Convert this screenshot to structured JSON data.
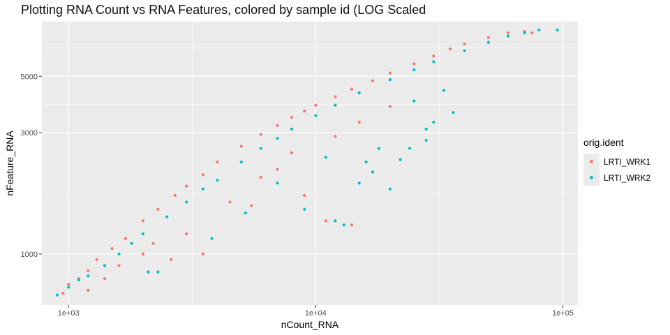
{
  "chart_data": {
    "type": "scatter",
    "title": "Plotting RNA Count vs RNA Features, colored by sample id (LOG Scaled",
    "xlabel": "nCount_RNA",
    "ylabel": "nFeature_RNA",
    "x_scale": "log10",
    "y_scale": "log10",
    "xlim": [
      780,
      115000
    ],
    "ylim": [
      630,
      8200
    ],
    "x_ticks": [
      {
        "value": 1000,
        "label": "1e+03"
      },
      {
        "value": 10000,
        "label": "1e+04"
      },
      {
        "value": 100000,
        "label": "1e+05"
      }
    ],
    "y_ticks": [
      {
        "value": 1000,
        "label": "1000"
      },
      {
        "value": 3000,
        "label": "3000"
      },
      {
        "value": 5000,
        "label": "5000"
      }
    ],
    "grid": true,
    "legend": {
      "title": "orig.ident",
      "position": "right",
      "entries": [
        {
          "label": "LRTI_WRK1",
          "color": "#F8766D"
        },
        {
          "label": "LRTI_WRK2",
          "color": "#00BFC4"
        }
      ]
    },
    "series": [
      {
        "name": "LRTI_WRK1",
        "color": "#F8766D",
        "points": [
          [
            950,
            700
          ],
          [
            1000,
            760
          ],
          [
            1100,
            800
          ],
          [
            1200,
            860
          ],
          [
            1300,
            950
          ],
          [
            1500,
            1050
          ],
          [
            1700,
            1150
          ],
          [
            2000,
            1350
          ],
          [
            2300,
            1500
          ],
          [
            2700,
            1700
          ],
          [
            3000,
            1850
          ],
          [
            3500,
            2050
          ],
          [
            4000,
            2300
          ],
          [
            5000,
            2650
          ],
          [
            6000,
            2950
          ],
          [
            7000,
            3200
          ],
          [
            8000,
            3450
          ],
          [
            9000,
            3650
          ],
          [
            10000,
            3850
          ],
          [
            12000,
            4150
          ],
          [
            14000,
            4450
          ],
          [
            17000,
            4800
          ],
          [
            20000,
            5150
          ],
          [
            25000,
            5600
          ],
          [
            30000,
            6000
          ],
          [
            35000,
            6400
          ],
          [
            40000,
            6700
          ],
          [
            50000,
            7100
          ],
          [
            60000,
            7400
          ],
          [
            70000,
            7500
          ],
          [
            75000,
            7400
          ],
          [
            1600,
            900
          ],
          [
            2200,
            1100
          ],
          [
            3000,
            1200
          ],
          [
            3500,
            1000
          ],
          [
            4500,
            1600
          ],
          [
            6000,
            2000
          ],
          [
            8000,
            2500
          ],
          [
            12000,
            2900
          ],
          [
            15000,
            3300
          ],
          [
            20000,
            3800
          ],
          [
            2600,
            950
          ],
          [
            9000,
            1700
          ],
          [
            11000,
            1350
          ],
          [
            14000,
            1300
          ],
          [
            5500,
            1550
          ],
          [
            7000,
            2150
          ],
          [
            2000,
            1000
          ],
          [
            1200,
            720
          ],
          [
            1400,
            800
          ]
        ]
      },
      {
        "name": "LRTI_WRK2",
        "color": "#00BFC4",
        "points": [
          [
            900,
            690
          ],
          [
            1000,
            740
          ],
          [
            1100,
            790
          ],
          [
            1200,
            820
          ],
          [
            1400,
            900
          ],
          [
            1600,
            1000
          ],
          [
            1800,
            1100
          ],
          [
            2000,
            1200
          ],
          [
            2500,
            1400
          ],
          [
            3000,
            1600
          ],
          [
            3500,
            1800
          ],
          [
            4000,
            1950
          ],
          [
            5000,
            2300
          ],
          [
            6000,
            2600
          ],
          [
            7000,
            2850
          ],
          [
            8000,
            3100
          ],
          [
            10000,
            3500
          ],
          [
            12000,
            3850
          ],
          [
            15000,
            4300
          ],
          [
            20000,
            4850
          ],
          [
            25000,
            5300
          ],
          [
            30000,
            5700
          ],
          [
            40000,
            6300
          ],
          [
            50000,
            6800
          ],
          [
            60000,
            7200
          ],
          [
            70000,
            7400
          ],
          [
            80000,
            7600
          ],
          [
            95000,
            7600
          ],
          [
            12000,
            1350
          ],
          [
            13000,
            1300
          ],
          [
            17000,
            2100
          ],
          [
            20000,
            1800
          ],
          [
            22000,
            2350
          ],
          [
            24000,
            2600
          ],
          [
            28000,
            3100
          ],
          [
            30000,
            3300
          ],
          [
            36000,
            3600
          ],
          [
            33000,
            4400
          ],
          [
            15000,
            1900
          ],
          [
            18000,
            2600
          ],
          [
            16000,
            2300
          ],
          [
            9000,
            1500
          ],
          [
            11000,
            2400
          ],
          [
            2100,
            850
          ],
          [
            2300,
            850
          ],
          [
            5200,
            1450
          ],
          [
            7000,
            1900
          ],
          [
            25000,
            4000
          ],
          [
            28000,
            2800
          ],
          [
            3800,
            1150
          ]
        ]
      }
    ]
  }
}
